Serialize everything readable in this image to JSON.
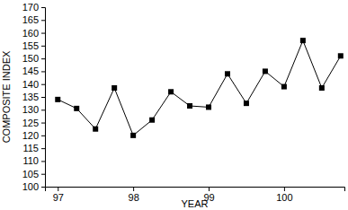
{
  "chart_data": {
    "type": "line",
    "x_label": "YEAR",
    "y_label": "COMPOSITE INDEX",
    "x": [
      97.0,
      97.25,
      97.5,
      97.75,
      98.0,
      98.25,
      98.5,
      98.75,
      99.0,
      99.25,
      99.5,
      99.75,
      100.0,
      100.25,
      100.5,
      100.75
    ],
    "values": [
      134,
      130.5,
      122.5,
      138.5,
      120,
      126,
      137,
      131.5,
      131,
      144,
      132.5,
      145,
      139,
      157,
      138.5,
      151
    ],
    "color": "#000000",
    "marker": "square",
    "line_style": "solid",
    "xlim": [
      96.83,
      100.8
    ],
    "xticks": [
      97,
      98,
      99,
      100
    ],
    "ylim": [
      100,
      170
    ],
    "yticks": [
      100,
      105,
      110,
      115,
      120,
      125,
      130,
      135,
      140,
      145,
      150,
      155,
      160,
      165,
      170
    ],
    "grid": false
  }
}
